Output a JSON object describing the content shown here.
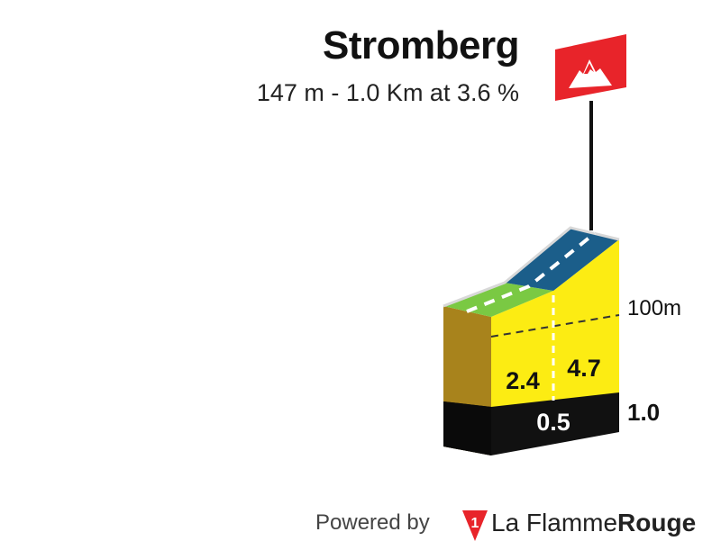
{
  "climb": {
    "name": "Stromberg",
    "summary": "147 m - 1.0 Km at 3.6 %"
  },
  "chart_data": {
    "type": "area",
    "title": "Stromberg",
    "subtitle": "147 m - 1.0 Km at 3.6 %",
    "x_unit": "km",
    "y_unit": "m",
    "total_distance_km": 1.0,
    "x_ticks": [
      {
        "km": 0.5,
        "label": "0.5"
      },
      {
        "km": 1.0,
        "label": "1.0"
      }
    ],
    "y_ticks": [
      {
        "m": 100,
        "label": "100m"
      }
    ],
    "segments": [
      {
        "from_km": 0.0,
        "to_km": 0.5,
        "gradient": 2.4,
        "label": "2.4",
        "color": "#7ac943"
      },
      {
        "from_km": 0.5,
        "to_km": 1.0,
        "gradient": 4.7,
        "label": "4.7",
        "color": "#1b5e8a"
      }
    ],
    "colors": {
      "side_wall": "#a8831c",
      "front_face": "#fcec13",
      "base": "#111111",
      "summit_flag": "#e8242a",
      "road_dash": "#ffffff"
    },
    "icons": [
      "summit-flag-icon",
      "mountain-icon"
    ]
  },
  "footer": {
    "powered_by": "Powered by",
    "brand_light": "La Flamme",
    "brand_bold": "Rouge",
    "logo_icon": "flamme-rouge-logo-icon",
    "logo_digit": "1"
  }
}
